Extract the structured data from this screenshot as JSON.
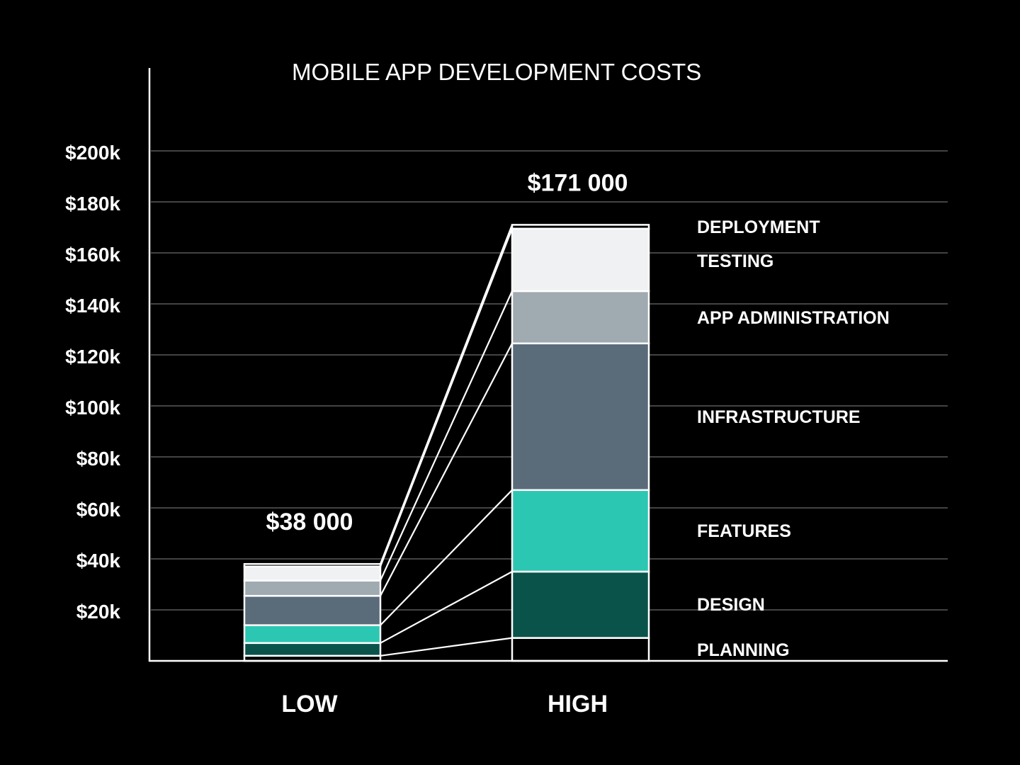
{
  "chart_data": {
    "type": "bar",
    "subtype": "stacked-bar-with-connectors",
    "title": "MOBILE APP DEVELOPMENT COSTS",
    "xlabel": "",
    "ylabel": "",
    "categories": [
      "LOW",
      "HIGH"
    ],
    "totals": [
      "$38 000",
      "$171 000"
    ],
    "total_values": [
      38000,
      171000
    ],
    "ylim": [
      0,
      200000
    ],
    "yticks": [
      {
        "value": 20000,
        "label": "$20k"
      },
      {
        "value": 40000,
        "label": "$40k"
      },
      {
        "value": 60000,
        "label": "$60k"
      },
      {
        "value": 80000,
        "label": "$80k"
      },
      {
        "value": 100000,
        "label": "$100k"
      },
      {
        "value": 120000,
        "label": "$120k"
      },
      {
        "value": 140000,
        "label": "$140k"
      },
      {
        "value": 160000,
        "label": "$160k"
      },
      {
        "value": 180000,
        "label": "$180k"
      },
      {
        "value": 200000,
        "label": "$200k"
      }
    ],
    "grid": true,
    "legend_position": "right (labels aligned to HIGH bar segments)",
    "series": [
      {
        "name": "PLANNING",
        "color": "#000000",
        "values": [
          2000,
          9000
        ]
      },
      {
        "name": "DESIGN",
        "color": "#0a534b",
        "values": [
          5000,
          26000
        ]
      },
      {
        "name": "FEATURES",
        "color": "#2cc7b2",
        "values": [
          7000,
          32000
        ]
      },
      {
        "name": "INFRASTRUCTURE",
        "color": "#5a6b7a",
        "values": [
          11500,
          57500
        ]
      },
      {
        "name": "APP ADMINISTRATION",
        "color": "#a0abb1",
        "values": [
          6000,
          20500
        ]
      },
      {
        "name": "TESTING",
        "color": "#eff1f3",
        "values": [
          5500,
          24500
        ]
      },
      {
        "name": "DEPLOYMENT",
        "color": "#000000",
        "values": [
          1000,
          1500
        ]
      }
    ],
    "label_y_positions": {
      "DEPLOYMENT": 320,
      "TESTING": 368,
      "APP ADMINISTRATION": 448,
      "INFRASTRUCTURE": 588,
      "FEATURES": 749,
      "DESIGN": 853,
      "PLANNING": 917
    }
  },
  "colors": {
    "background": "#000000",
    "gridline": "#6b6b6b",
    "axis": "#ffffff",
    "text": "#ffffff"
  }
}
